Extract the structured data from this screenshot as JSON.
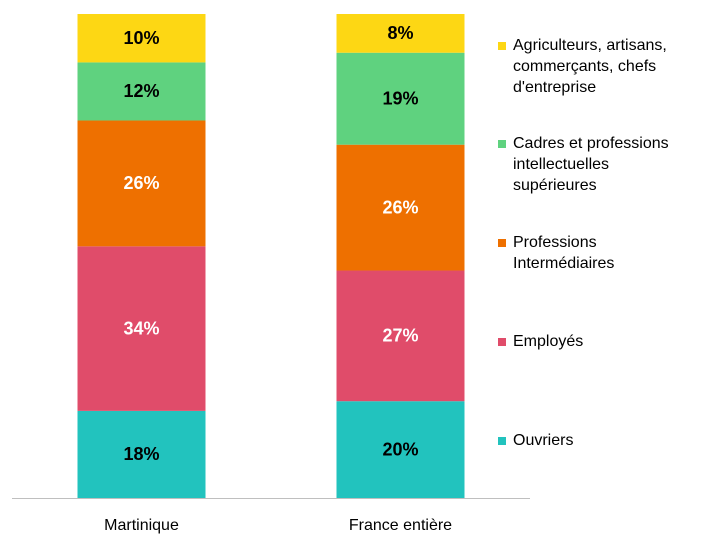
{
  "chart_data": {
    "type": "stacked_bar",
    "categories": [
      "Martinique",
      "France entière"
    ],
    "ylim": [
      0,
      100
    ],
    "legend": "right",
    "series": [
      {
        "name": "Ouvriers",
        "color": "#22c3be",
        "label_color": "#000000",
        "values": [
          18,
          20
        ],
        "value_labels": [
          "18%",
          "20%"
        ]
      },
      {
        "name": "Employés",
        "color": "#e04c6a",
        "label_color": "#ffffff",
        "values": [
          34,
          27
        ],
        "value_labels": [
          "34%",
          "27%"
        ]
      },
      {
        "name": "Professions Intermédiaires",
        "color": "#ee7000",
        "label_color": "#ffffff",
        "values": [
          26,
          26
        ],
        "value_labels": [
          "26%",
          "26%"
        ]
      },
      {
        "name": "Cadres et professions intellectuelles supérieures",
        "color": "#5fd27f",
        "label_color": "#000000",
        "values": [
          12,
          19
        ],
        "value_labels": [
          "12%",
          "19%"
        ]
      },
      {
        "name": "Agriculteurs, artisans, commerçants, chefs d'entreprise",
        "color": "#fdd714",
        "label_color": "#000000",
        "values": [
          10,
          8
        ],
        "value_labels": [
          "10%",
          "8%"
        ]
      }
    ]
  }
}
